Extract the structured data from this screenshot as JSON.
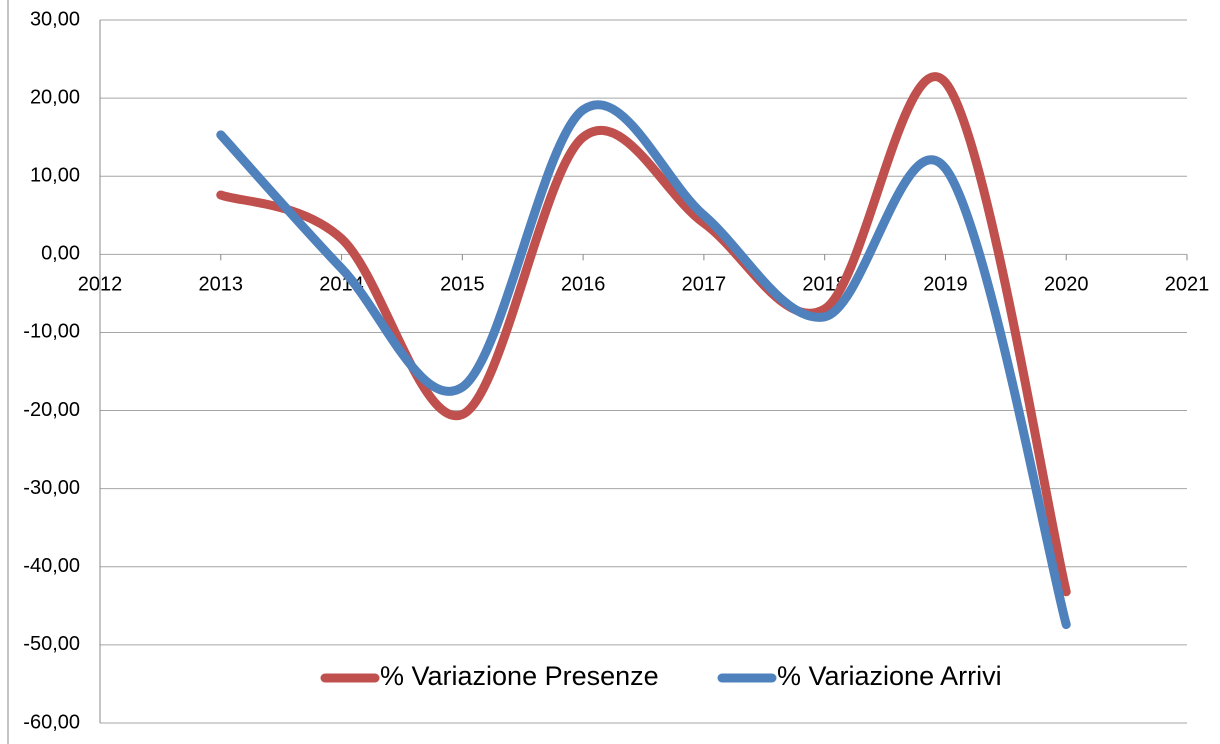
{
  "chart_data": {
    "type": "line",
    "x": [
      2013,
      2014,
      2015,
      2016,
      2017,
      2018,
      2019,
      2020
    ],
    "series": [
      {
        "name": "% Variazione Presenze",
        "color": "#c0504d",
        "values": [
          7.6,
          2.0,
          -20.5,
          15.0,
          4.0,
          -7.0,
          22.0,
          -43.2
        ]
      },
      {
        "name": "% Variazione Arrivi",
        "color": "#4f81bd",
        "values": [
          15.3,
          -1.8,
          -17.0,
          18.5,
          5.0,
          -8.0,
          11.0,
          -47.4
        ]
      }
    ],
    "xlim": [
      2012,
      2021
    ],
    "xticks": [
      2012,
      2013,
      2014,
      2015,
      2016,
      2017,
      2018,
      2019,
      2020,
      2021
    ],
    "ylim": [
      -60,
      30
    ],
    "yticks": [
      {
        "value": -60,
        "label": "-60,00"
      },
      {
        "value": -50,
        "label": "-50,00"
      },
      {
        "value": -40,
        "label": "-40,00"
      },
      {
        "value": -30,
        "label": "-30,00"
      },
      {
        "value": -20,
        "label": "-20,00"
      },
      {
        "value": -10,
        "label": "-10,00"
      },
      {
        "value": 0,
        "label": "0,00"
      },
      {
        "value": 10,
        "label": "10,00"
      },
      {
        "value": 20,
        "label": "20,00"
      },
      {
        "value": 30,
        "label": "30,00"
      }
    ],
    "grid": true,
    "smooth": true,
    "legend": "bottom"
  }
}
